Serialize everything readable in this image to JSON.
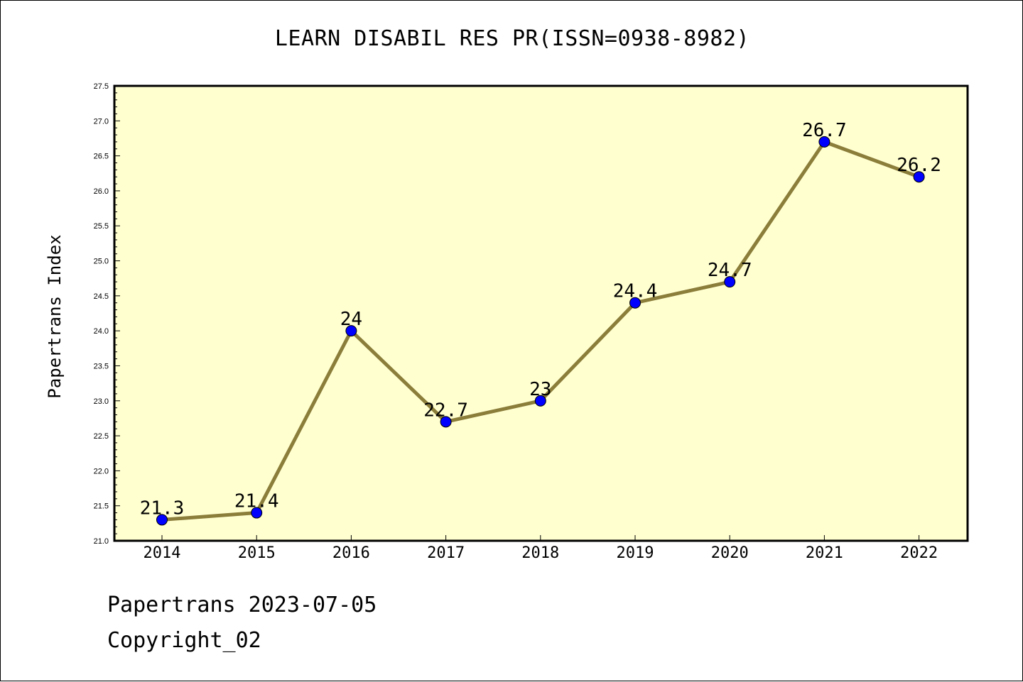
{
  "chart_data": {
    "type": "line",
    "title": "LEARN DISABIL RES PR(ISSN=0938-8982)",
    "xlabel": "",
    "ylabel": "Papertrans Index",
    "categories": [
      "2014",
      "2015",
      "2016",
      "2017",
      "2018",
      "2019",
      "2020",
      "2021",
      "2022"
    ],
    "values": [
      21.3,
      21.4,
      24,
      22.7,
      23,
      24.4,
      24.7,
      26.7,
      26.2
    ],
    "data_labels": [
      "21.3",
      "21.4",
      "24",
      "22.7",
      "23",
      "24.4",
      "24.7",
      "26.7",
      "26.2"
    ],
    "ylim": [
      21.0,
      27.5
    ],
    "y_ticks": [
      "21.0",
      "21.5",
      "22.0",
      "22.5",
      "23.0",
      "23.5",
      "24.0",
      "24.5",
      "25.0",
      "25.5",
      "26.0",
      "26.5",
      "27.0",
      "27.5"
    ],
    "grid": false,
    "legend": "none",
    "colors": {
      "plot_background": "#ffffd0",
      "line": "#8b7d3a",
      "marker": "#0000ff"
    }
  },
  "footer": {
    "date_text": "Papertrans 2023-07-05",
    "copyright_text": "Copyright_02"
  }
}
